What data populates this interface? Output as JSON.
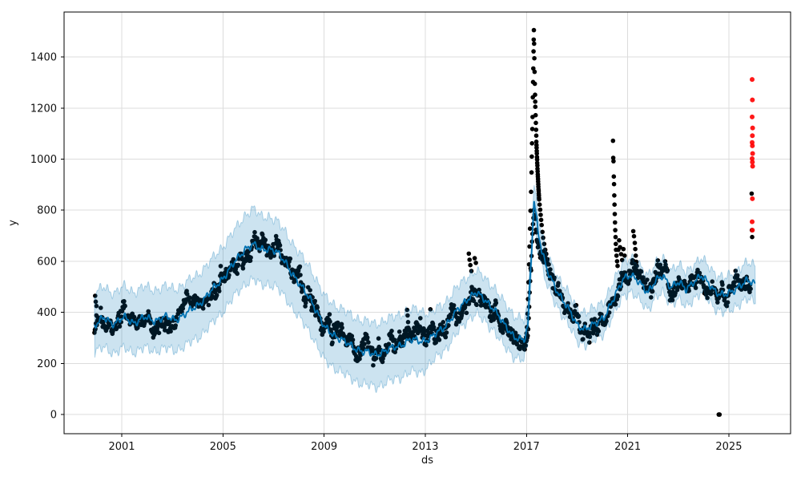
{
  "figure": {
    "background": "#ffffff"
  },
  "chart_data": {
    "type": "scatter",
    "description": "Prophet-style time series forecast plot: black dots = observed values, blue line = fitted forecast (yhat), light blue band = uncertainty interval, red dots = anomalous future observations",
    "title": "",
    "xlabel": "ds",
    "ylabel": "y",
    "xlim": [
      1998.72,
      2027.44
    ],
    "ylim": [
      -75,
      1576
    ],
    "xticks": [
      2001,
      2005,
      2009,
      2013,
      2017,
      2021,
      2025
    ],
    "yticks": [
      0,
      200,
      400,
      600,
      800,
      1000,
      1200,
      1400
    ],
    "grid": true,
    "legend": "none",
    "colors": {
      "forecast_line": "#0072B2",
      "uncertainty_band": "rgba(0,114,178,0.2)",
      "band_edge": "rgba(0,114,178,0.28)",
      "actuals": "#000000",
      "anomalies": "#ff0000",
      "grid": "#dcdcdc",
      "spine": "#000000",
      "tick_text": "#111111"
    },
    "actuals_range": [
      1999.92,
      2025.86
    ],
    "forecast_end": 2026.05,
    "forecast_keypoints": [
      [
        1999.92,
        345,
        240,
        470
      ],
      [
        2000.3,
        380,
        265,
        500
      ],
      [
        2000.7,
        355,
        240,
        475
      ],
      [
        2001.1,
        380,
        260,
        500
      ],
      [
        2001.5,
        360,
        245,
        480
      ],
      [
        2001.9,
        380,
        260,
        500
      ],
      [
        2002.3,
        368,
        250,
        488
      ],
      [
        2002.7,
        382,
        258,
        500
      ],
      [
        2003.1,
        372,
        252,
        492
      ],
      [
        2003.5,
        392,
        268,
        512
      ],
      [
        2004.0,
        428,
        300,
        548
      ],
      [
        2004.5,
        478,
        348,
        598
      ],
      [
        2005.0,
        535,
        405,
        660
      ],
      [
        2005.5,
        600,
        468,
        725
      ],
      [
        2005.9,
        652,
        515,
        785
      ],
      [
        2006.2,
        665,
        528,
        805
      ],
      [
        2006.5,
        645,
        508,
        775
      ],
      [
        2006.8,
        652,
        512,
        778
      ],
      [
        2007.1,
        638,
        498,
        758
      ],
      [
        2007.5,
        592,
        455,
        712
      ],
      [
        2008.0,
        512,
        380,
        632
      ],
      [
        2008.5,
        448,
        315,
        568
      ],
      [
        2009.0,
        342,
        212,
        462
      ],
      [
        2009.5,
        305,
        178,
        425
      ],
      [
        2010.0,
        272,
        145,
        392
      ],
      [
        2010.5,
        248,
        120,
        368
      ],
      [
        2011.0,
        235,
        108,
        355
      ],
      [
        2011.5,
        252,
        126,
        372
      ],
      [
        2012.0,
        272,
        146,
        392
      ],
      [
        2012.4,
        292,
        166,
        412
      ],
      [
        2012.8,
        288,
        162,
        408
      ],
      [
        2013.2,
        298,
        200,
        395
      ],
      [
        2013.7,
        338,
        245,
        432
      ],
      [
        2014.2,
        398,
        310,
        490
      ],
      [
        2014.7,
        458,
        375,
        545
      ],
      [
        2015.0,
        478,
        395,
        562
      ],
      [
        2015.3,
        452,
        368,
        538
      ],
      [
        2015.7,
        418,
        332,
        502
      ],
      [
        2016.1,
        352,
        268,
        438
      ],
      [
        2016.5,
        308,
        228,
        392
      ],
      [
        2016.9,
        288,
        212,
        368
      ],
      [
        2017.05,
        340,
        270,
        415
      ],
      [
        2017.2,
        640,
        575,
        710
      ],
      [
        2017.3,
        845,
        785,
        905
      ],
      [
        2017.45,
        725,
        655,
        795
      ],
      [
        2017.6,
        645,
        585,
        705
      ],
      [
        2017.8,
        565,
        505,
        625
      ],
      [
        2018.1,
        505,
        445,
        565
      ],
      [
        2018.5,
        438,
        375,
        500
      ],
      [
        2019.0,
        352,
        290,
        415
      ],
      [
        2019.35,
        335,
        272,
        398
      ],
      [
        2019.7,
        352,
        290,
        415
      ],
      [
        2020.1,
        388,
        325,
        452
      ],
      [
        2020.5,
        462,
        398,
        528
      ],
      [
        2020.85,
        538,
        472,
        605
      ],
      [
        2021.1,
        548,
        480,
        615
      ],
      [
        2021.45,
        515,
        448,
        582
      ],
      [
        2021.8,
        482,
        415,
        550
      ],
      [
        2022.1,
        522,
        455,
        590
      ],
      [
        2022.4,
        542,
        475,
        610
      ],
      [
        2022.7,
        502,
        435,
        570
      ],
      [
        2023.0,
        518,
        450,
        585
      ],
      [
        2023.3,
        488,
        420,
        555
      ],
      [
        2023.6,
        522,
        455,
        590
      ],
      [
        2023.9,
        542,
        475,
        610
      ],
      [
        2024.2,
        512,
        445,
        580
      ],
      [
        2024.5,
        482,
        415,
        550
      ],
      [
        2024.8,
        465,
        398,
        532
      ],
      [
        2025.1,
        478,
        410,
        545
      ],
      [
        2025.4,
        505,
        435,
        575
      ],
      [
        2025.7,
        522,
        450,
        592
      ],
      [
        2026.05,
        512,
        440,
        582
      ]
    ],
    "outliers_black": [
      [
        1999.95,
        465
      ],
      [
        1999.97,
        442
      ],
      [
        2000.0,
        425
      ],
      [
        2012.28,
        410
      ],
      [
        2012.3,
        388
      ],
      [
        2012.32,
        362
      ],
      [
        2012.33,
        340
      ],
      [
        2013.2,
        412
      ],
      [
        2014.72,
        630
      ],
      [
        2014.75,
        606
      ],
      [
        2014.78,
        585
      ],
      [
        2014.82,
        562
      ],
      [
        2014.95,
        612
      ],
      [
        2015.0,
        594
      ],
      [
        2016.98,
        302
      ],
      [
        2017.0,
        318
      ],
      [
        2017.02,
        342
      ],
      [
        2017.04,
        395
      ],
      [
        2017.06,
        452
      ],
      [
        2017.08,
        518
      ],
      [
        2017.1,
        588
      ],
      [
        2017.12,
        658
      ],
      [
        2017.14,
        728
      ],
      [
        2017.16,
        798
      ],
      [
        2017.18,
        872
      ],
      [
        2017.2,
        948
      ],
      [
        2017.21,
        1010
      ],
      [
        2017.22,
        1062
      ],
      [
        2017.23,
        1118
      ],
      [
        2017.24,
        1165
      ],
      [
        2017.25,
        1242
      ],
      [
        2017.26,
        1302
      ],
      [
        2017.27,
        1355
      ],
      [
        2017.28,
        1422
      ],
      [
        2017.285,
        1468
      ],
      [
        2017.29,
        1505
      ],
      [
        2017.3,
        1452
      ],
      [
        2017.31,
        1395
      ],
      [
        2017.32,
        1342
      ],
      [
        2017.33,
        1295
      ],
      [
        2017.34,
        1252
      ],
      [
        2017.345,
        1225
      ],
      [
        2017.35,
        1205
      ],
      [
        2017.36,
        1172
      ],
      [
        2017.37,
        1142
      ],
      [
        2017.38,
        1115
      ],
      [
        2017.385,
        1092
      ],
      [
        2017.39,
        1068
      ],
      [
        2017.395,
        1055
      ],
      [
        2017.4,
        1045
      ],
      [
        2017.405,
        1032
      ],
      [
        2017.41,
        1022
      ],
      [
        2017.415,
        1008
      ],
      [
        2017.42,
        998
      ],
      [
        2017.425,
        985
      ],
      [
        2017.43,
        975
      ],
      [
        2017.435,
        962
      ],
      [
        2017.44,
        952
      ],
      [
        2017.445,
        940
      ],
      [
        2017.45,
        932
      ],
      [
        2017.455,
        922
      ],
      [
        2017.46,
        912
      ],
      [
        2017.465,
        902
      ],
      [
        2017.47,
        892
      ],
      [
        2017.475,
        882
      ],
      [
        2017.48,
        875
      ],
      [
        2017.485,
        865
      ],
      [
        2017.49,
        858
      ],
      [
        2017.495,
        848
      ],
      [
        2017.5,
        842
      ],
      [
        2017.52,
        822
      ],
      [
        2017.54,
        802
      ],
      [
        2017.56,
        782
      ],
      [
        2017.58,
        762
      ],
      [
        2017.6,
        742
      ],
      [
        2017.63,
        715
      ],
      [
        2017.66,
        692
      ],
      [
        2017.7,
        668
      ],
      [
        2017.74,
        645
      ],
      [
        2017.78,
        628
      ],
      [
        2017.83,
        608
      ],
      [
        2017.88,
        588
      ],
      [
        2017.94,
        568
      ],
      [
        2018.0,
        548
      ],
      [
        2020.42,
        1072
      ],
      [
        2020.43,
        1005
      ],
      [
        2020.44,
        992
      ],
      [
        2020.45,
        932
      ],
      [
        2020.46,
        902
      ],
      [
        2020.47,
        858
      ],
      [
        2020.48,
        822
      ],
      [
        2020.49,
        785
      ],
      [
        2020.5,
        752
      ],
      [
        2020.51,
        722
      ],
      [
        2020.52,
        695
      ],
      [
        2020.53,
        668
      ],
      [
        2020.54,
        645
      ],
      [
        2020.56,
        622
      ],
      [
        2020.58,
        600
      ],
      [
        2020.6,
        582
      ],
      [
        2020.63,
        645
      ],
      [
        2020.66,
        682
      ],
      [
        2020.7,
        655
      ],
      [
        2020.74,
        628
      ],
      [
        2020.78,
        605
      ],
      [
        2020.83,
        648
      ],
      [
        2020.88,
        622
      ],
      [
        2021.22,
        718
      ],
      [
        2021.25,
        698
      ],
      [
        2021.28,
        672
      ],
      [
        2021.3,
        648
      ],
      [
        2021.32,
        622
      ],
      [
        2021.34,
        598
      ],
      [
        2021.36,
        582
      ],
      [
        2024.6,
        0
      ],
      [
        2024.63,
        0
      ],
      [
        2025.9,
        865
      ],
      [
        2025.91,
        722
      ],
      [
        2025.92,
        695
      ]
    ],
    "anomalies_red": [
      [
        2025.92,
        1312
      ],
      [
        2025.93,
        1232
      ],
      [
        2025.92,
        1165
      ],
      [
        2025.94,
        1122
      ],
      [
        2025.93,
        1092
      ],
      [
        2025.92,
        1065
      ],
      [
        2025.93,
        1052
      ],
      [
        2025.94,
        1022
      ],
      [
        2025.92,
        1002
      ],
      [
        2025.93,
        988
      ],
      [
        2025.94,
        972
      ],
      [
        2025.93,
        845
      ],
      [
        2025.92,
        755
      ],
      [
        2025.93,
        722
      ]
    ]
  }
}
